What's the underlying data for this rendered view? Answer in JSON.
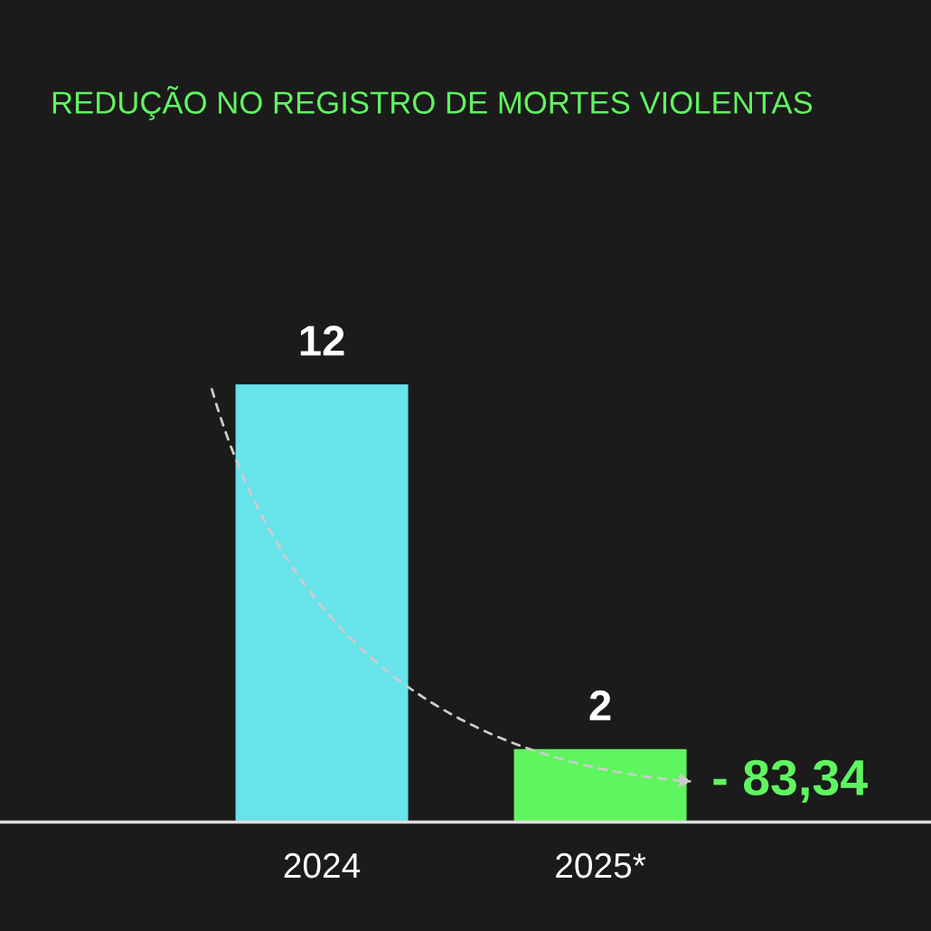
{
  "chart_data": {
    "type": "bar",
    "title": "REDUÇÃO NO REGISTRO DE MORTES VIOLENTAS",
    "categories": [
      "2024",
      "2025*"
    ],
    "values": [
      12,
      2
    ],
    "colors": [
      "#67e3ea",
      "#5ff55f"
    ],
    "data_labels": true,
    "annotations": [
      "- 83,34"
    ],
    "grid": false,
    "legend": false
  }
}
